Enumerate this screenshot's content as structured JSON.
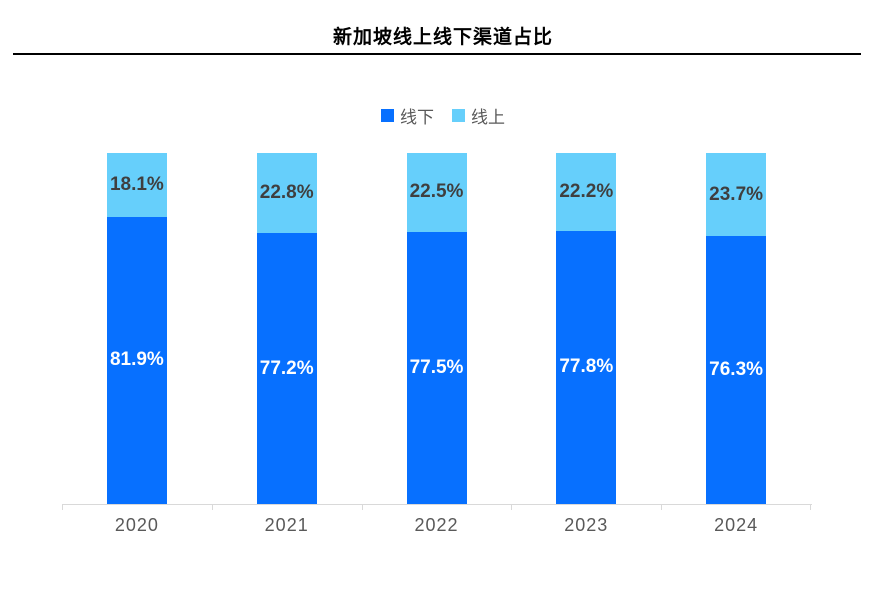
{
  "header": {
    "title": "新加坡线上线下渠道占比"
  },
  "legend": {
    "items": [
      {
        "label": "线下",
        "color": "#0770FF"
      },
      {
        "label": "线上",
        "color": "#66CFFB"
      }
    ]
  },
  "colors": {
    "offline_bar": "#0770FF",
    "online_bar": "#66CFFB",
    "offline_label_text": "#ffffff",
    "online_label_text": "#3f3f3f",
    "axis_line": "#d9d9d9",
    "tick_label_text": "#595959",
    "title_text": "#000000"
  },
  "chart_data": {
    "type": "bar",
    "stacked": true,
    "title": "新加坡线上线下渠道占比",
    "xlabel": "",
    "ylabel": "",
    "ylim": [
      0,
      100
    ],
    "grid": false,
    "legend_position": "top",
    "categories": [
      "2020",
      "2021",
      "2022",
      "2023",
      "2024"
    ],
    "series": [
      {
        "name": "线下",
        "color": "#0770FF",
        "values": [
          81.9,
          77.2,
          77.5,
          77.8,
          76.3
        ],
        "labels": [
          "81.9%",
          "77.2%",
          "77.5%",
          "77.8%",
          "76.3%"
        ]
      },
      {
        "name": "线上",
        "color": "#66CFFB",
        "values": [
          18.1,
          22.8,
          22.5,
          22.2,
          23.7
        ],
        "labels": [
          "18.1%",
          "22.8%",
          "22.5%",
          "22.2%",
          "23.7%"
        ]
      }
    ]
  }
}
